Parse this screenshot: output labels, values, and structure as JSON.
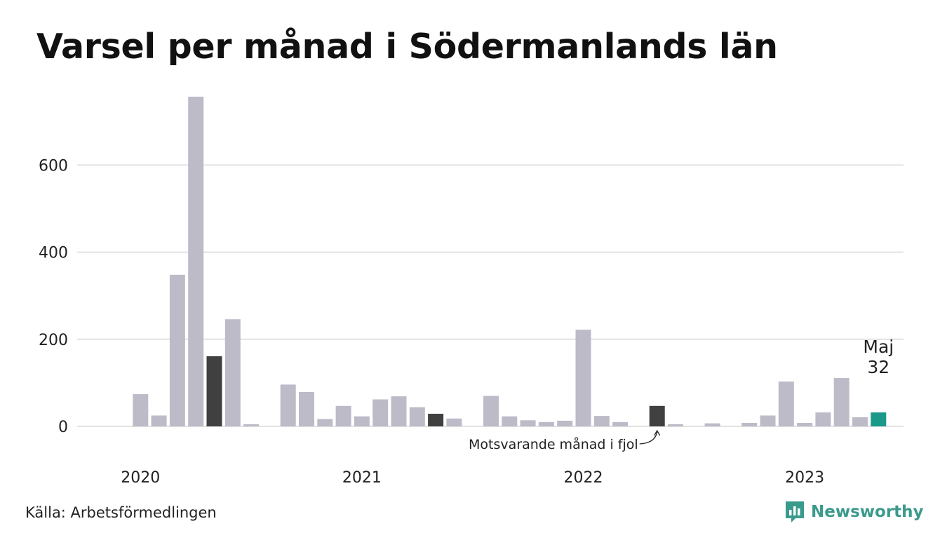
{
  "title": "Varsel per månad i Södermanlands län",
  "source": "Källa: Arbetsförmedlingen",
  "brand": {
    "name": "Newsworthy",
    "logo_icon": "newsworthy-logo-icon"
  },
  "colors": {
    "default": "#bdbbc8",
    "highlight_last_year": "#404040",
    "current": "#1a998a",
    "grid": "#e2e2e2"
  },
  "chart_data": {
    "type": "bar",
    "title": "Varsel per månad i Södermanlands län",
    "xlabel": "",
    "ylabel": "",
    "ylim": [
      0,
      760
    ],
    "yticks": [
      0,
      200,
      400,
      600
    ],
    "grid": true,
    "x_tick_labels": [
      "2020",
      "2021",
      "2022",
      "2023"
    ],
    "categories": [
      "2019-12",
      "2020-01",
      "2020-02",
      "2020-03",
      "2020-04",
      "2020-05",
      "2020-06",
      "2020-07",
      "2020-08",
      "2020-09",
      "2020-10",
      "2020-11",
      "2020-12",
      "2021-01",
      "2021-02",
      "2021-03",
      "2021-04",
      "2021-05",
      "2021-06",
      "2021-07",
      "2021-08",
      "2021-09",
      "2021-10",
      "2021-11",
      "2021-12",
      "2022-01",
      "2022-02",
      "2022-03",
      "2022-04",
      "2022-05",
      "2022-06",
      "2022-07",
      "2022-08",
      "2022-09",
      "2022-10",
      "2022-11",
      "2022-12",
      "2023-01",
      "2023-02",
      "2023-03",
      "2023-04",
      "2023-05"
    ],
    "values": [
      0,
      74,
      25,
      348,
      757,
      161,
      246,
      5,
      0,
      96,
      79,
      17,
      47,
      23,
      62,
      69,
      44,
      29,
      18,
      0,
      70,
      23,
      14,
      10,
      13,
      222,
      24,
      10,
      0,
      47,
      5,
      0,
      7,
      0,
      8,
      25,
      103,
      8,
      32,
      111,
      21,
      32
    ],
    "highlighted": {
      "last_year_index": [
        5,
        17,
        29
      ],
      "current_index": 41
    },
    "annotations": {
      "last_year_label": "Motsvarande månad i fjol",
      "current_month": "Maj",
      "current_value": "32"
    }
  }
}
